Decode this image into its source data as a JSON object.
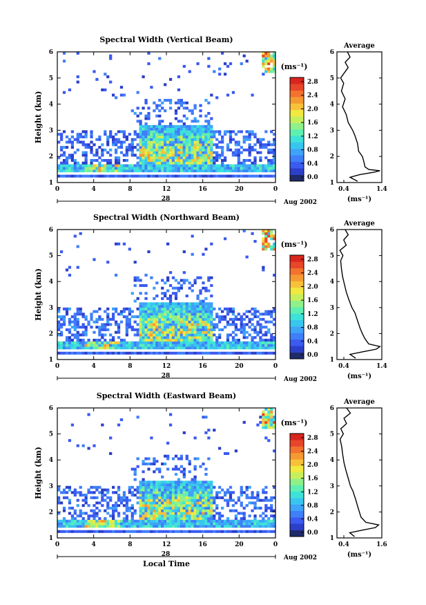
{
  "figure": {
    "xlabel_bottom": "Local Time"
  },
  "colorbar": {
    "unit": "(ms⁻¹)",
    "ticks": [
      "0.0",
      "0.4",
      "0.8",
      "1.2",
      "1.6",
      "2.0",
      "2.4",
      "2.8"
    ],
    "colors": [
      "#1f2a6b",
      "#2b3fc8",
      "#3a5af0",
      "#3f7ff8",
      "#3fa3f7",
      "#38c6ef",
      "#3ee2d9",
      "#5ef0b2",
      "#90f08a",
      "#c7ef5c",
      "#f1e93f",
      "#f7c23a",
      "#f59a33",
      "#f2722e",
      "#e8462a",
      "#d8261f"
    ]
  },
  "panels": [
    {
      "title": "Spectral Width (Vertical Beam)",
      "date_label": "Aug 2002",
      "day": "28",
      "avg_title": "Average",
      "avg_xticks": [
        "0.4",
        "1.4"
      ],
      "avg_unit": "(ms⁻¹)"
    },
    {
      "title": "Spectral Width (Northward Beam)",
      "date_label": "Aug 2002",
      "day": "28",
      "avg_title": "Average",
      "avg_xticks": [
        "0.4",
        "1.4"
      ],
      "avg_unit": "(ms⁻¹)"
    },
    {
      "title": "Spectral Width (Eastward Beam)",
      "date_label": "Aug 2002",
      "day": "28",
      "avg_title": "Average",
      "avg_xticks": [
        "0.4",
        "1.6"
      ],
      "avg_unit": "(ms⁻¹)"
    }
  ],
  "chart_data": [
    {
      "type": "heatmap",
      "title": "Spectral Width (Vertical Beam)",
      "xlabel": "",
      "ylabel": "Height (km)",
      "xlim": [
        0,
        24
      ],
      "ylim": [
        1,
        6
      ],
      "xticks": [
        "0",
        "4",
        "8",
        "12",
        "16",
        "20",
        "0"
      ],
      "yticks": [
        "1",
        "2",
        "3",
        "4",
        "5",
        "6"
      ],
      "colorbar": {
        "label": "(ms⁻¹)",
        "range": [
          0.0,
          3.0
        ]
      }
    },
    {
      "type": "line",
      "title": "Average",
      "xlabel": "(ms⁻¹)",
      "ylabel": "",
      "xlim": [
        0.2,
        1.4
      ],
      "ylim": [
        1,
        6
      ],
      "y": [
        1.05,
        1.2,
        1.3,
        1.4,
        1.45,
        1.5,
        1.6,
        1.8,
        2.0,
        2.2,
        2.5,
        2.8,
        3.0,
        3.3,
        3.6,
        3.9,
        4.2,
        4.5,
        4.8,
        5.0,
        5.2,
        5.4,
        5.6,
        5.8,
        6.0
      ],
      "x": [
        0.75,
        0.55,
        0.8,
        1.2,
        1.35,
        1.05,
        0.95,
        0.92,
        0.88,
        0.78,
        0.75,
        0.68,
        0.62,
        0.5,
        0.45,
        0.35,
        0.42,
        0.32,
        0.38,
        0.3,
        0.4,
        0.5,
        0.42,
        0.55,
        0.48
      ]
    },
    {
      "type": "heatmap",
      "title": "Spectral Width (Northward Beam)",
      "xlabel": "",
      "ylabel": "Height (km)",
      "xlim": [
        0,
        24
      ],
      "ylim": [
        1,
        6
      ],
      "xticks": [
        "0",
        "4",
        "8",
        "12",
        "16",
        "20",
        "0"
      ],
      "yticks": [
        "1",
        "2",
        "3",
        "4",
        "5",
        "6"
      ],
      "colorbar": {
        "label": "(ms⁻¹)",
        "range": [
          0.0,
          3.0
        ]
      }
    },
    {
      "type": "line",
      "title": "Average",
      "xlabel": "(ms⁻¹)",
      "ylabel": "",
      "xlim": [
        0.2,
        1.4
      ],
      "ylim": [
        1,
        6
      ],
      "y": [
        1.05,
        1.2,
        1.3,
        1.4,
        1.5,
        1.6,
        1.8,
        2.0,
        2.2,
        2.5,
        2.8,
        3.0,
        3.3,
        3.6,
        3.9,
        4.2,
        4.5,
        4.8,
        5.0,
        5.2,
        5.4,
        5.6,
        5.8,
        6.0
      ],
      "x": [
        0.7,
        0.55,
        0.9,
        1.25,
        1.35,
        1.05,
        0.95,
        0.88,
        0.82,
        0.75,
        0.68,
        0.6,
        0.52,
        0.45,
        0.4,
        0.35,
        0.32,
        0.3,
        0.36,
        0.28,
        0.45,
        0.38,
        0.5,
        0.42
      ]
    },
    {
      "type": "heatmap",
      "title": "Spectral Width (Eastward Beam)",
      "xlabel": "Local Time",
      "ylabel": "Height (km)",
      "xlim": [
        0,
        24
      ],
      "ylim": [
        1,
        6
      ],
      "xticks": [
        "0",
        "4",
        "8",
        "12",
        "16",
        "20",
        "0"
      ],
      "yticks": [
        "1",
        "2",
        "3",
        "4",
        "5",
        "6"
      ],
      "colorbar": {
        "label": "(ms⁻¹)",
        "range": [
          0.0,
          3.0
        ]
      }
    },
    {
      "type": "line",
      "title": "Average",
      "xlabel": "(ms⁻¹)",
      "ylabel": "",
      "xlim": [
        0.2,
        1.6
      ],
      "ylim": [
        1,
        6
      ],
      "y": [
        1.05,
        1.2,
        1.3,
        1.4,
        1.5,
        1.6,
        1.8,
        2.0,
        2.2,
        2.5,
        2.8,
        3.0,
        3.3,
        3.6,
        3.9,
        4.2,
        4.5,
        4.8,
        5.0,
        5.2,
        5.4,
        5.6,
        5.8,
        6.0
      ],
      "x": [
        0.75,
        0.6,
        1.0,
        1.4,
        1.5,
        1.1,
        0.95,
        0.9,
        0.85,
        0.78,
        0.7,
        0.62,
        0.55,
        0.48,
        0.42,
        0.38,
        0.35,
        0.3,
        0.4,
        0.32,
        0.5,
        0.42,
        0.62,
        0.5
      ]
    }
  ]
}
